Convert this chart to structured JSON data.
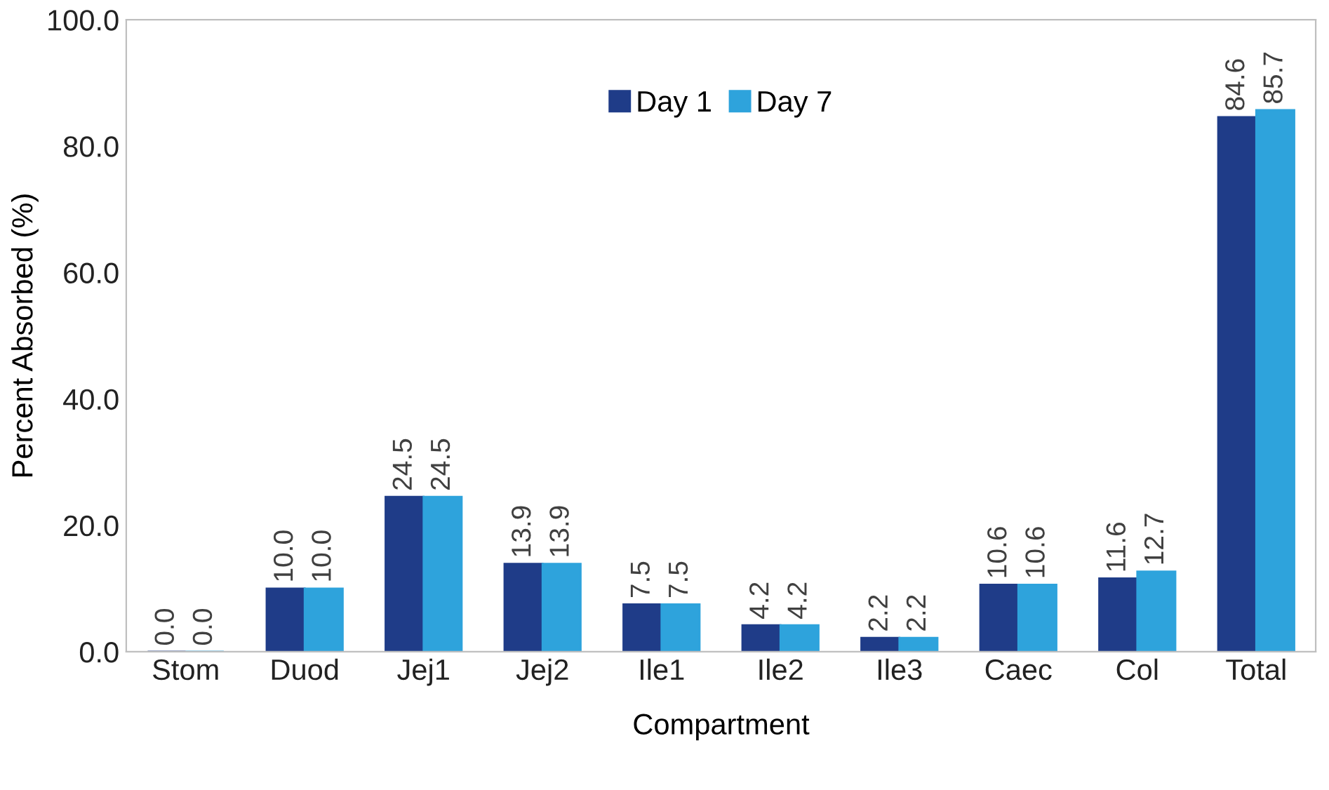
{
  "chart_data": {
    "type": "bar",
    "xlabel": "Compartment",
    "ylabel": "Percent Absorbed (%)",
    "categories": [
      "Stom",
      "Duod",
      "Jej1",
      "Jej2",
      "Ile1",
      "Ile2",
      "Ile3",
      "Caec",
      "Col",
      "Total"
    ],
    "series": [
      {
        "name": "Day 1",
        "color": "#1f3c88",
        "values": [
          0.0,
          10.0,
          24.5,
          13.9,
          7.5,
          4.2,
          2.2,
          10.6,
          11.6,
          84.6
        ],
        "value_labels": [
          "0.0",
          "10.0",
          "24.5",
          "13.9",
          "7.5",
          "4.2",
          "2.2",
          "10.6",
          "11.6",
          "84.6"
        ]
      },
      {
        "name": "Day 7",
        "color": "#2ea3dc",
        "values": [
          0.0,
          10.0,
          24.5,
          13.9,
          7.5,
          4.2,
          2.2,
          10.6,
          12.7,
          85.7
        ],
        "value_labels": [
          "0.0",
          "10.0",
          "24.5",
          "13.9",
          "7.5",
          "4.2",
          "2.2",
          "10.6",
          "12.7",
          "85.7"
        ]
      }
    ],
    "ylim": [
      0,
      100
    ],
    "yticks": [
      {
        "value": 0,
        "label": "0.0"
      },
      {
        "value": 20,
        "label": "20.0"
      },
      {
        "value": 40,
        "label": "40.0"
      },
      {
        "value": 60,
        "label": "60.0"
      },
      {
        "value": 80,
        "label": "80.0"
      },
      {
        "value": 100,
        "label": "100.0"
      }
    ],
    "legend": "top",
    "grid": false
  }
}
